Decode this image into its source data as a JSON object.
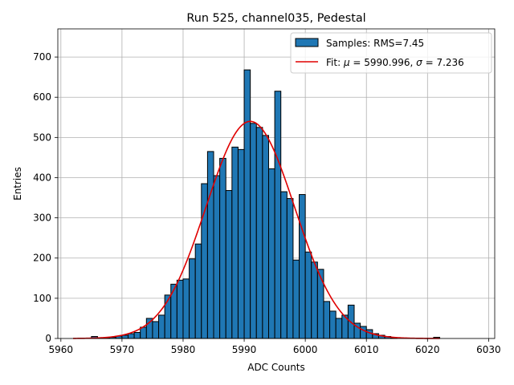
{
  "chart_data": {
    "type": "bar",
    "title": "Run 525, channel035, Pedestal",
    "xlabel": "ADC Counts",
    "ylabel": "Entries",
    "xlim": [
      5959.5,
      6031.0
    ],
    "ylim": [
      0,
      770
    ],
    "xticks": [
      5960,
      5970,
      5980,
      5990,
      6000,
      6010,
      6020,
      6030
    ],
    "yticks": [
      0,
      100,
      200,
      300,
      400,
      500,
      600,
      700
    ],
    "grid": true,
    "legend_position": "top-right",
    "colors": {
      "bars": "#1f77b4",
      "edge": "#000000",
      "fit": "#e00000",
      "grid": "#b0b0b0"
    },
    "histogram": {
      "name": "Samples: RMS=7.45",
      "bin_start": 5962,
      "bin_width": 1,
      "counts": [
        0,
        0,
        0,
        5,
        2,
        2,
        3,
        6,
        8,
        12,
        15,
        28,
        50,
        42,
        58,
        108,
        135,
        145,
        148,
        198,
        235,
        385,
        465,
        405,
        448,
        368,
        476,
        470,
        668,
        535,
        525,
        505,
        422,
        615,
        365,
        348,
        195,
        358,
        215,
        190,
        172,
        92,
        68,
        50,
        58,
        83,
        38,
        30,
        22,
        12,
        8,
        5,
        2,
        0,
        0,
        0,
        0,
        0,
        0,
        3,
        0,
        0,
        0,
        0,
        0,
        0,
        0,
        0
      ]
    },
    "fit": {
      "name": "Fit: μ = 5990.996, σ = 7.236",
      "label_prefix": "Fit: ",
      "mu_symbol": "μ",
      "mu_value": " = 5990.996, ",
      "sigma_symbol": "σ",
      "sigma_value": " = 7.236",
      "mu": 5990.996,
      "sigma": 7.236,
      "amplitude": 540,
      "x_range": [
        5962,
        6022
      ]
    }
  }
}
